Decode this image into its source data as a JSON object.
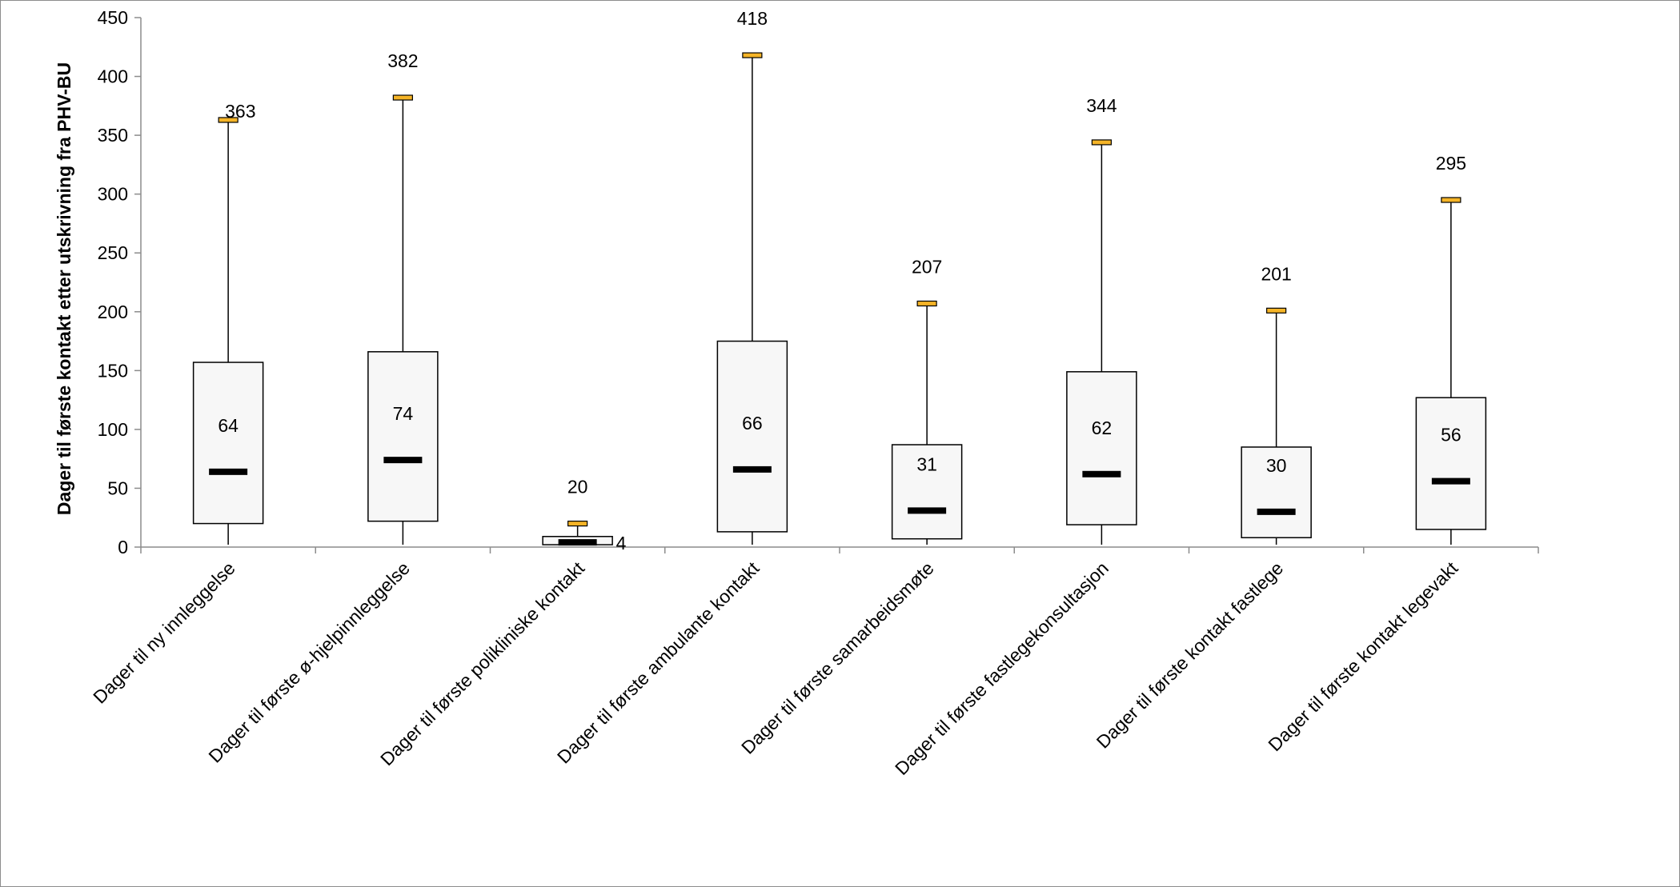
{
  "chart_data": {
    "type": "boxplot",
    "ylabel": "Dager til første kontakt etter utskrivning fra PHV-BU",
    "xlabel": "",
    "ylim": [
      0,
      450
    ],
    "yticks": [
      0,
      50,
      100,
      150,
      200,
      250,
      300,
      350,
      400,
      450
    ],
    "categories": [
      "Dager til ny innleggelse",
      "Dager til første ø-hjelpinnleggelse",
      "Dager til første polikliniske kontakt",
      "Dager til første ambulante kontakt",
      "Dager til første samarbeidsmøte",
      "Dager til første fastlegekonsultasjon",
      "Dager til første kontakt  fastlege",
      "Dager til første kontakt legevakt"
    ],
    "boxes": [
      {
        "min": 2,
        "q1": 20,
        "median": 64,
        "q3": 157,
        "max": 363
      },
      {
        "min": 2,
        "q1": 22,
        "median": 74,
        "q3": 166,
        "max": 382
      },
      {
        "min": 2,
        "q1": 2,
        "median": 4,
        "q3": 9,
        "max": 20
      },
      {
        "min": 2,
        "q1": 13,
        "median": 66,
        "q3": 175,
        "max": 418
      },
      {
        "min": 2,
        "q1": 7,
        "median": 31,
        "q3": 87,
        "max": 207
      },
      {
        "min": 2,
        "q1": 19,
        "median": 62,
        "q3": 149,
        "max": 344
      },
      {
        "min": 2,
        "q1": 8,
        "median": 30,
        "q3": 85,
        "max": 201
      },
      {
        "min": 2,
        "q1": 15,
        "median": 56,
        "q3": 127,
        "max": 295
      }
    ],
    "median_labels": [
      "64",
      "74",
      "4",
      "66",
      "31",
      "62",
      "30",
      "56"
    ],
    "max_labels": [
      "363",
      "382",
      "20",
      "418",
      "207",
      "344",
      "201",
      "295"
    ],
    "colors": {
      "box_fill": "#f7f7f7",
      "box_stroke": "#000000",
      "median": "#000000",
      "max_marker_fill": "#f5b427",
      "axis": "#8c8c8c"
    }
  }
}
